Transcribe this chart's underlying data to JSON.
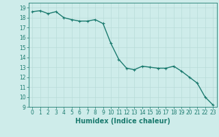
{
  "x": [
    0,
    1,
    2,
    3,
    4,
    5,
    6,
    7,
    8,
    9,
    10,
    11,
    12,
    13,
    14,
    15,
    16,
    17,
    18,
    19,
    20,
    21,
    22,
    23
  ],
  "y": [
    18.6,
    18.7,
    18.4,
    18.6,
    18.0,
    17.8,
    17.65,
    17.65,
    17.8,
    17.4,
    15.4,
    13.8,
    12.9,
    12.75,
    13.1,
    13.0,
    12.9,
    12.9,
    13.1,
    12.6,
    12.0,
    11.4,
    10.0,
    9.2
  ],
  "line_color": "#1a7a6e",
  "marker": "+",
  "marker_size": 3,
  "xlabel": "Humidex (Indice chaleur)",
  "xlim": [
    -0.5,
    23.5
  ],
  "ylim": [
    9,
    19.5
  ],
  "yticks": [
    9,
    10,
    11,
    12,
    13,
    14,
    15,
    16,
    17,
    18,
    19
  ],
  "xticks": [
    0,
    1,
    2,
    3,
    4,
    5,
    6,
    7,
    8,
    9,
    10,
    11,
    12,
    13,
    14,
    15,
    16,
    17,
    18,
    19,
    20,
    21,
    22,
    23
  ],
  "bg_color": "#ceecea",
  "grid_color": "#b8dbd8",
  "line_width": 1.0,
  "tick_fontsize": 5.5,
  "label_fontsize": 7.0
}
